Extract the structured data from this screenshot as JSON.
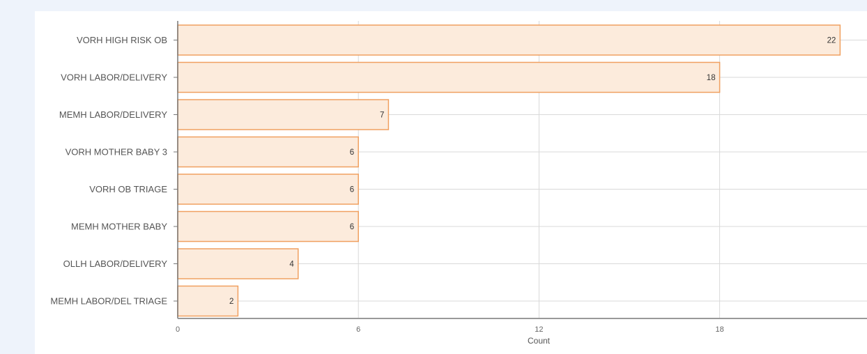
{
  "chart_data": {
    "type": "bar",
    "orientation": "horizontal",
    "categories": [
      "VORH HIGH RISK OB",
      "VORH LABOR/DELIVERY",
      "MEMH LABOR/DELIVERY",
      "VORH MOTHER BABY 3",
      "VORH OB TRIAGE",
      "MEMH MOTHER BABY",
      "OLLH LABOR/DELIVERY",
      "MEMH LABOR/DEL TRIAGE"
    ],
    "values": [
      22,
      18,
      7,
      6,
      6,
      6,
      4,
      2
    ],
    "value_labels": [
      "22",
      "18",
      "7",
      "6",
      "6",
      "6",
      "4",
      "2"
    ],
    "xlabel": "Count",
    "ylabel": "",
    "x_ticks": [
      "0",
      "6",
      "12",
      "18"
    ],
    "xlim": [
      0,
      23
    ],
    "grid": true,
    "colors": {
      "bar_fill": "#fcebdc",
      "bar_stroke": "#f0a060"
    }
  }
}
